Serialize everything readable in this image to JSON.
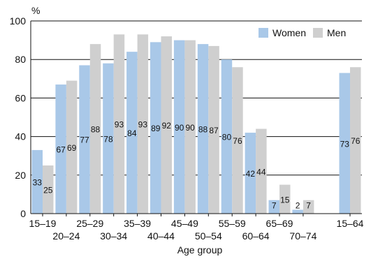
{
  "chart_data": {
    "type": "bar",
    "y_unit": "%",
    "xlabel": "Age group",
    "ylim": [
      0,
      100
    ],
    "y_ticks": [
      0,
      20,
      40,
      60,
      80,
      100
    ],
    "grid": true,
    "legend_position": "top-right",
    "categories": [
      "15–19",
      "20–24",
      "25–29",
      "30–34",
      "35–39",
      "40–44",
      "45–49",
      "50–54",
      "55–59",
      "60–64",
      "65–69",
      "70–74",
      "15–64"
    ],
    "series": [
      {
        "name": "Women",
        "color": "#a9c8e8",
        "values": [
          33,
          67,
          77,
          78,
          84,
          89,
          90,
          88,
          80,
          42,
          7,
          2,
          73
        ]
      },
      {
        "name": "Men",
        "color": "#cfcfcf",
        "values": [
          25,
          69,
          88,
          93,
          93,
          92,
          90,
          87,
          76,
          44,
          15,
          7,
          76
        ]
      }
    ]
  }
}
